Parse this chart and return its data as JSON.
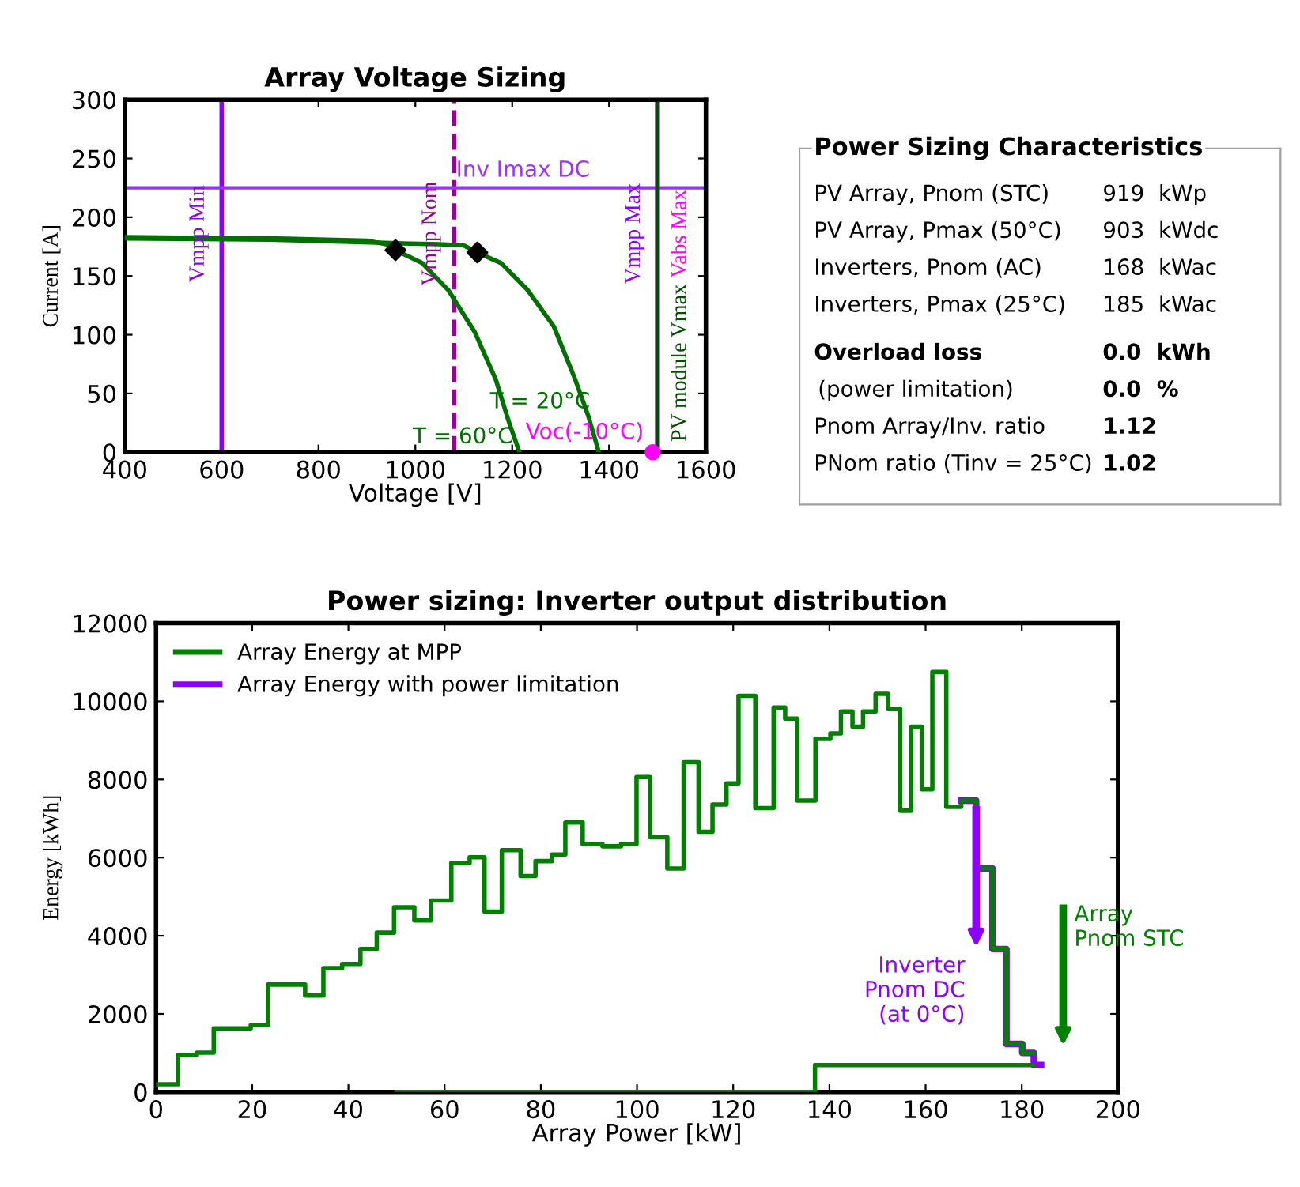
{
  "chart_data": [
    {
      "type": "line",
      "title": "Array Voltage Sizing",
      "xlabel": "Voltage [V]",
      "ylabel": "Current [A]",
      "xlim": [
        400,
        1600
      ],
      "xticks": [
        400,
        600,
        800,
        1000,
        1200,
        1400,
        1600
      ],
      "ylim": [
        0,
        300
      ],
      "yticks": [
        0,
        50,
        100,
        150,
        200,
        250,
        300
      ],
      "grid": false,
      "series": [
        {
          "name": "T = 60°C",
          "color": "#007000",
          "x": [
            400,
            700,
            900,
            940,
            959,
            1014,
            1068,
            1123,
            1166,
            1193,
            1215
          ],
          "values": [
            183,
            182,
            180,
            177,
            172,
            161,
            138,
            102,
            62,
            26,
            0
          ]
        },
        {
          "name": "T = 20°C",
          "color": "#007000",
          "x": [
            400,
            700,
            950,
            1050,
            1100,
            1128,
            1177,
            1232,
            1286,
            1330,
            1357,
            1379
          ],
          "values": [
            182,
            181,
            178,
            177,
            176,
            170,
            161,
            138,
            107,
            62,
            31,
            0
          ]
        },
        {
          "type": "scatter",
          "marker": "diamond",
          "color": "#000000",
          "x": [
            959,
            1128
          ],
          "values": [
            172,
            170
          ]
        },
        {
          "type": "scatter",
          "marker": "circle",
          "name": "Voc(-10°C)",
          "color": "#ff00ff",
          "x": [
            1490
          ],
          "values": [
            0
          ]
        }
      ],
      "ref_lines": [
        {
          "axis": "x",
          "value": 600,
          "label": "Vmpp Min",
          "color": "#8c00ff",
          "line_style": "solid"
        },
        {
          "axis": "x",
          "value": 1080,
          "label": "Vmpp Nom",
          "color": "#990099",
          "line_style": "dashed"
        },
        {
          "axis": "y",
          "value": 225,
          "label": "Inv Imax DC",
          "color": "#9933ff",
          "line_style": "solid"
        },
        {
          "axis": "x",
          "value": 1500,
          "label": "Vmpp Max",
          "color": "#8c00ff",
          "line_style": "solid"
        },
        {
          "axis": "x",
          "value": 1500,
          "label": "Vabs Max",
          "color": "#ff00ff",
          "line_style": "solid"
        },
        {
          "axis": "x",
          "value": 1500,
          "label": "PV module Vmax",
          "color": "#005000",
          "line_style": "solid"
        }
      ]
    },
    {
      "type": "other",
      "title": "Power Sizing Characteristics",
      "annotations": [
        "PV Array, Pnom (STC)",
        "919  kWp",
        "PV Array, Pmax (50°C)",
        "903  kWdc",
        "Inverters, Pnom (AC)",
        "168  kWac",
        "Inverters, Pmax (25°C)",
        "185  kWac",
        "Overload loss",
        "0.0  kWh",
        "(power limitation)",
        "0.0  %",
        "Pnom Array/Inv. ratio",
        "1.12",
        "PNom ratio (Tinv = 25°C)",
        "1.02"
      ]
    },
    {
      "type": "step",
      "title": "Power sizing: Inverter output distribution",
      "xlabel": "Array Power [kW]",
      "ylabel": "Energy [kWh]",
      "xlim": [
        0,
        200
      ],
      "xticks": [
        0,
        20,
        40,
        60,
        80,
        100,
        120,
        140,
        160,
        180,
        200
      ],
      "ylim": [
        0,
        12000
      ],
      "yticks": [
        0,
        2000,
        4000,
        6000,
        8000,
        10000,
        12000
      ],
      "grid": false,
      "legend": "top left",
      "series": [
        {
          "name": "Array Energy with power limitation",
          "color": "#8c00ff",
          "x": [
            167.4,
            170.5,
            173.9,
            176.8,
            180.1,
            182.5,
            184.0
          ],
          "values": [
            7460,
            5720,
            3660,
            1230,
            1000,
            690,
            690
          ]
        },
        {
          "name": "Array Energy at MPP",
          "color": "#008000",
          "x": [
            0,
            4.6,
            8.5,
            12.0,
            19.7,
            23.3,
            31.0,
            34.8,
            38.7,
            42.5,
            45.9,
            49.5,
            53.7,
            57.2,
            61.4,
            65.2,
            68.3,
            71.9,
            75.8,
            78.9,
            82.3,
            85.1,
            88.7,
            92.8,
            96.7,
            99.9,
            102.7,
            106.3,
            109.7,
            112.8,
            115.7,
            118.6,
            121.1,
            124.6,
            128.4,
            130.8,
            133.3,
            137.1,
            140.2,
            142.4,
            144.8,
            147.0,
            149.6,
            152.2,
            154.7,
            157.0,
            159.2,
            161.4,
            164.3,
            167.4,
            170.5,
            173.9,
            176.8,
            180.1,
            182.5
          ],
          "values": [
            200,
            950,
            1010,
            1630,
            1710,
            2750,
            2470,
            3170,
            3280,
            3660,
            4080,
            4730,
            4390,
            4900,
            5860,
            6010,
            4620,
            6190,
            5530,
            5910,
            6080,
            6900,
            6350,
            6290,
            6350,
            8060,
            6520,
            5720,
            8440,
            6660,
            7360,
            7900,
            10140,
            7270,
            9840,
            9560,
            7460,
            9040,
            9180,
            9740,
            9350,
            9740,
            10190,
            9800,
            7200,
            9350,
            7750,
            10750,
            7300,
            7460,
            5720,
            3660,
            1230,
            1000,
            1000
          ]
        },
        {
          "color": "#008000",
          "x": [
            50,
            137.0,
            182.5
          ],
          "values": [
            0,
            690,
            690
          ]
        }
      ],
      "ref_lines": [
        {
          "axis": "x",
          "value": 170.5,
          "label": "Inverter\nPnom DC\n(at 0°C)",
          "color": "#8c00ff"
        },
        {
          "axis": "x",
          "value": 188.6,
          "label": "Array\nPnom STC",
          "color": "#008000"
        }
      ]
    }
  ]
}
